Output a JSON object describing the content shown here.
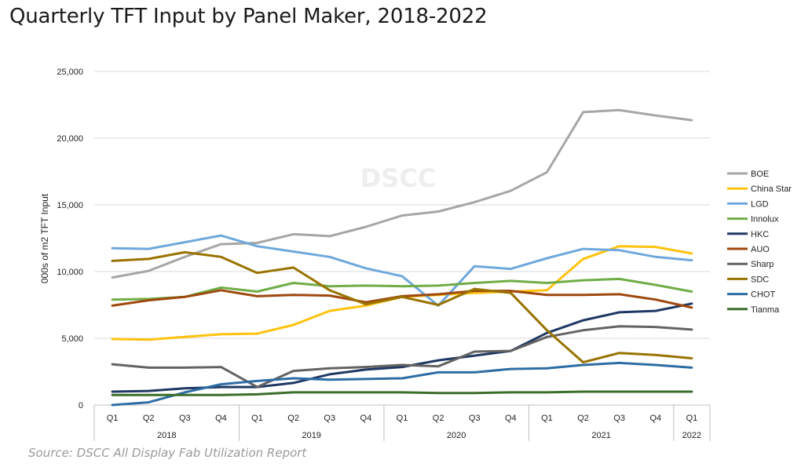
{
  "title": "Quarterly TFT Input by Panel Maker, 2018-2022",
  "source": "Source: DSCC All Display Fab Utilization Report",
  "watermark": "DSCC",
  "chart_data": {
    "type": "line",
    "ylabel": "000s of m2 TFT Input",
    "xlabel": "",
    "ylim": [
      0,
      25000
    ],
    "yticks": [
      "0",
      "5,000",
      "10,000",
      "15,000",
      "20,000",
      "25,000"
    ],
    "grid": "horizontal",
    "legend_position": "right",
    "x": [
      "Q1",
      "Q2",
      "Q3",
      "Q4",
      "Q1",
      "Q2",
      "Q3",
      "Q4",
      "Q1",
      "Q2",
      "Q3",
      "Q4",
      "Q1",
      "Q2",
      "Q3",
      "Q4",
      "Q1"
    ],
    "years": [
      {
        "label": "2018",
        "start": 0,
        "end": 3
      },
      {
        "label": "2019",
        "start": 4,
        "end": 7
      },
      {
        "label": "2020",
        "start": 8,
        "end": 11
      },
      {
        "label": "2021",
        "start": 12,
        "end": 15
      },
      {
        "label": "2022",
        "start": 16,
        "end": 16
      }
    ],
    "series": [
      {
        "name": "BOE",
        "color": "#a6a6a6",
        "values": [
          9550,
          10050,
          11100,
          12050,
          12150,
          12800,
          12650,
          13350,
          14200,
          14500,
          15200,
          16050,
          17450,
          21950,
          22100,
          21700,
          21350
        ]
      },
      {
        "name": "China Star",
        "color": "#ffc20e",
        "values": [
          4950,
          4900,
          5100,
          5300,
          5350,
          6000,
          7050,
          7450,
          8100,
          8250,
          8400,
          8500,
          8600,
          10950,
          11900,
          11850,
          11350
        ]
      },
      {
        "name": "LGD",
        "color": "#6fa8dc",
        "values": [
          11750,
          11700,
          12200,
          12700,
          11900,
          11500,
          11100,
          10250,
          9650,
          7450,
          10400,
          10200,
          11000,
          11700,
          11600,
          11100,
          10850
        ]
      },
      {
        "name": "Innolux",
        "color": "#70ad47",
        "values": [
          7900,
          7950,
          8100,
          8800,
          8500,
          9150,
          8900,
          8950,
          8900,
          8950,
          9150,
          9300,
          9150,
          9350,
          9450,
          9000,
          8500
        ]
      },
      {
        "name": "HKC",
        "color": "#1f3864",
        "values": [
          1000,
          1050,
          1250,
          1350,
          1350,
          1650,
          2300,
          2650,
          2850,
          3350,
          3700,
          4050,
          5400,
          6350,
          6950,
          7050,
          7600
        ]
      },
      {
        "name": "AUO",
        "color": "#9e480e",
        "values": [
          7450,
          7850,
          8100,
          8600,
          8150,
          8250,
          8200,
          7700,
          8150,
          8300,
          8550,
          8550,
          8250,
          8250,
          8300,
          7900,
          7300
        ]
      },
      {
        "name": "Sharp",
        "color": "#636363",
        "values": [
          3050,
          2800,
          2800,
          2850,
          1350,
          2550,
          2750,
          2850,
          3000,
          2900,
          4000,
          4050,
          5100,
          5600,
          5900,
          5850,
          5650
        ]
      },
      {
        "name": "SDC",
        "color": "#997300",
        "values": [
          10800,
          10950,
          11450,
          11100,
          9900,
          10300,
          8600,
          7550,
          8100,
          7500,
          8700,
          8400,
          5600,
          3200,
          3900,
          3750,
          3500
        ]
      },
      {
        "name": "CHOT",
        "color": "#2e6da4",
        "values": [
          0,
          200,
          950,
          1550,
          1800,
          2000,
          1900,
          1950,
          2000,
          2450,
          2450,
          2700,
          2750,
          3000,
          3150,
          3000,
          2800
        ]
      },
      {
        "name": "Tianma",
        "color": "#3b6e2a",
        "values": [
          750,
          750,
          750,
          750,
          800,
          950,
          950,
          950,
          950,
          900,
          900,
          950,
          950,
          1000,
          1000,
          1000,
          1000
        ]
      }
    ]
  }
}
